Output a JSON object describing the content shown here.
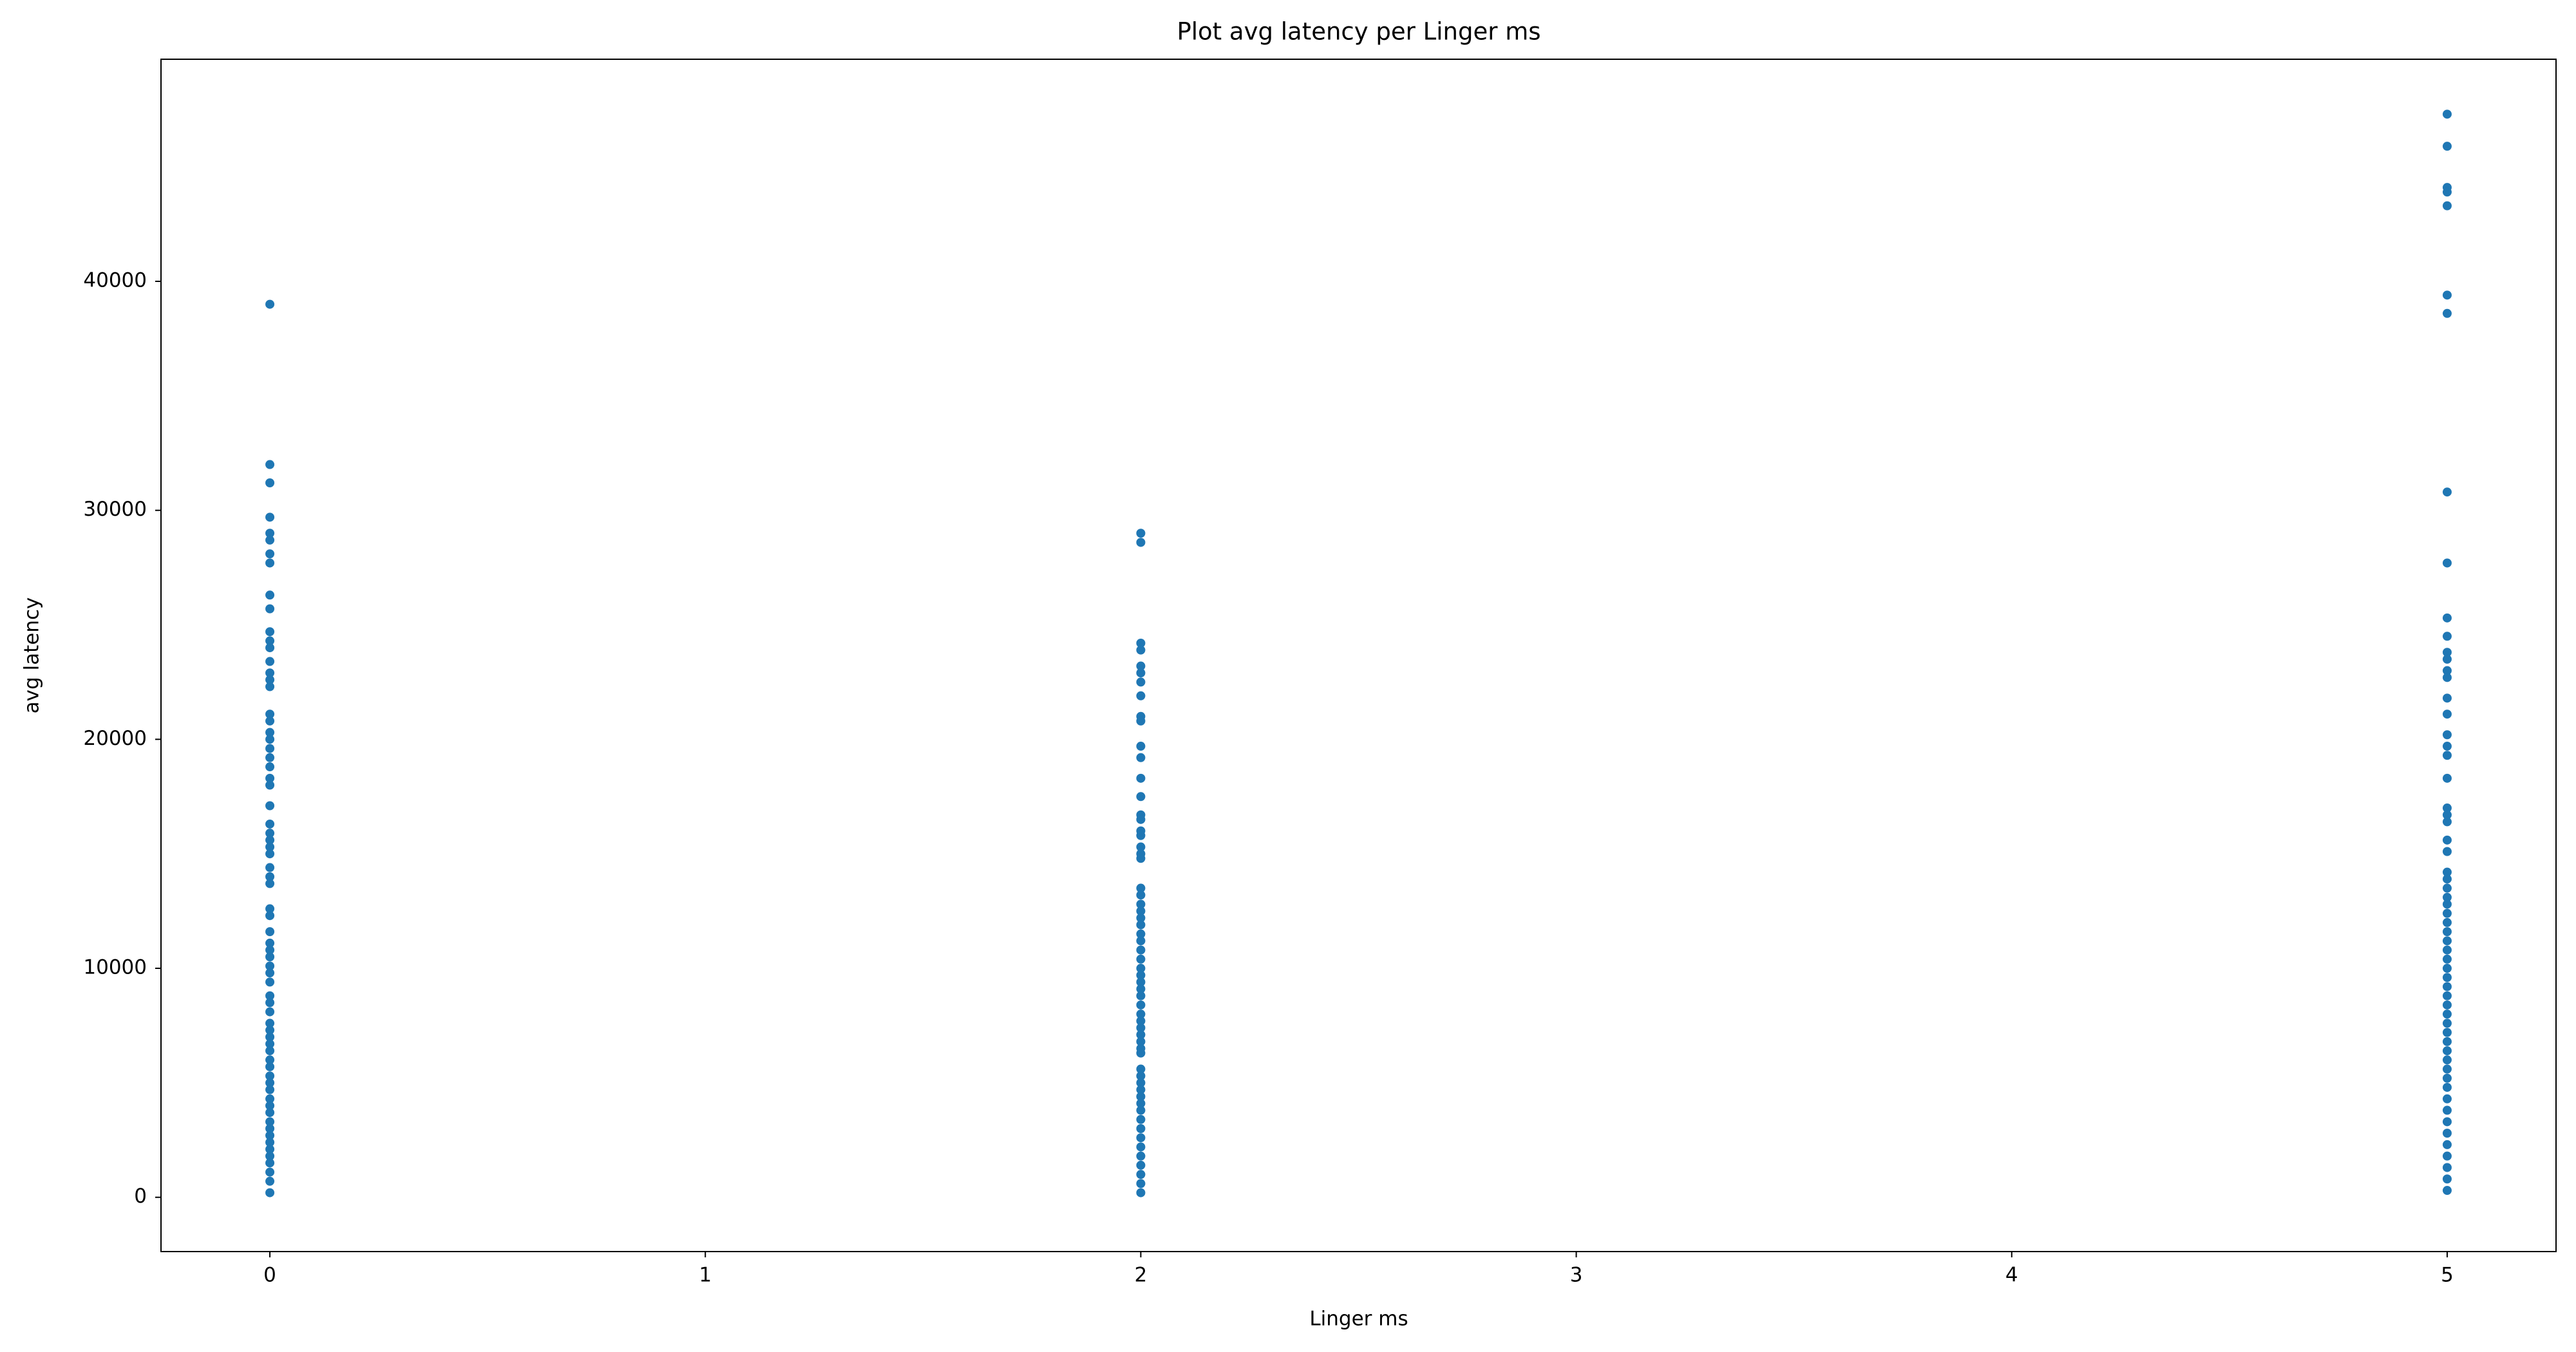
{
  "chart_data": {
    "type": "scatter",
    "title": "Plot avg latency per Linger ms",
    "x_label": "Linger ms",
    "y_label": "avg latency",
    "xlim": [
      -0.25,
      5.25
    ],
    "xticks": [
      0,
      1,
      2,
      3,
      4,
      5
    ],
    "ylim": [
      -2370,
      49700
    ],
    "yticks": [
      0,
      10000,
      20000,
      30000,
      40000
    ],
    "grid": false,
    "series": [
      {
        "color": "#1f77b4",
        "x": [
          0,
          0,
          0,
          0,
          0,
          0,
          0,
          0,
          0,
          0,
          0,
          0,
          0,
          0,
          0,
          0,
          0,
          0,
          0,
          0,
          0,
          0,
          0,
          0,
          0,
          0,
          0,
          0,
          0,
          0,
          0,
          0,
          0,
          0,
          0,
          0,
          0,
          0,
          0,
          0,
          0,
          0,
          0,
          0,
          0,
          0,
          0,
          0,
          0,
          0,
          0,
          0,
          0,
          0,
          0,
          0,
          0,
          0,
          0,
          0,
          0,
          0,
          0,
          0,
          0,
          0,
          0,
          0,
          0,
          0
        ],
        "values": [
          39000,
          32000,
          31200,
          29700,
          29000,
          28700,
          28100,
          27700,
          26300,
          25700,
          24700,
          24300,
          24000,
          23400,
          22900,
          22600,
          22300,
          21100,
          20800,
          20300,
          20000,
          19600,
          19200,
          18800,
          18300,
          18000,
          17100,
          16300,
          15900,
          15600,
          15300,
          15000,
          14400,
          14000,
          13700,
          12600,
          12300,
          11600,
          11100,
          10800,
          10500,
          10100,
          9800,
          9400,
          8800,
          8500,
          8100,
          7600,
          7300,
          7000,
          6700,
          6400,
          6000,
          5700,
          5300,
          5000,
          4700,
          4300,
          4000,
          3700,
          3300,
          3000,
          2700,
          2400,
          2100,
          1800,
          1500,
          1100,
          700,
          200
        ]
      },
      {
        "color": "#1f77b4",
        "x": [
          2,
          2,
          2,
          2,
          2,
          2,
          2,
          2,
          2,
          2,
          2,
          2,
          2,
          2,
          2,
          2,
          2,
          2,
          2,
          2,
          2,
          2,
          2,
          2,
          2,
          2,
          2,
          2,
          2,
          2,
          2,
          2,
          2,
          2,
          2,
          2,
          2,
          2,
          2,
          2,
          2,
          2,
          2,
          2,
          2,
          2,
          2,
          2,
          2,
          2,
          2,
          2,
          2,
          2,
          2,
          2,
          2,
          2,
          2,
          2
        ],
        "values": [
          29000,
          28600,
          24200,
          23900,
          23200,
          22900,
          22500,
          21900,
          21000,
          20800,
          19700,
          19200,
          18300,
          17500,
          16700,
          16500,
          16000,
          15800,
          15300,
          15000,
          14800,
          13500,
          13200,
          12800,
          12500,
          12200,
          11900,
          11500,
          11200,
          10800,
          10400,
          10000,
          9700,
          9400,
          9100,
          8800,
          8400,
          8000,
          7700,
          7400,
          7100,
          6800,
          6500,
          6300,
          5600,
          5300,
          5000,
          4700,
          4400,
          4100,
          3800,
          3400,
          3000,
          2600,
          2200,
          1800,
          1400,
          1000,
          600,
          200
        ]
      },
      {
        "color": "#1f77b4",
        "x": [
          5,
          5,
          5,
          5,
          5,
          5,
          5,
          5,
          5,
          5,
          5,
          5,
          5,
          5,
          5,
          5,
          5,
          5,
          5,
          5,
          5,
          5,
          5,
          5,
          5,
          5,
          5,
          5,
          5,
          5,
          5,
          5,
          5,
          5,
          5,
          5,
          5,
          5,
          5,
          5,
          5,
          5,
          5,
          5,
          5,
          5,
          5,
          5,
          5,
          5,
          5,
          5,
          5,
          5,
          5,
          5,
          5,
          5,
          5,
          5
        ],
        "values": [
          47300,
          45900,
          44100,
          43900,
          43300,
          39400,
          38600,
          30800,
          27700,
          25300,
          24500,
          23800,
          23500,
          23000,
          22700,
          21800,
          21100,
          20200,
          19700,
          19300,
          18300,
          17000,
          16700,
          16400,
          15600,
          15100,
          14200,
          13900,
          13500,
          13100,
          12800,
          12400,
          12000,
          11600,
          11200,
          10800,
          10400,
          10000,
          9600,
          9200,
          8800,
          8400,
          8000,
          7600,
          7200,
          6800,
          6400,
          6000,
          5600,
          5200,
          4800,
          4300,
          3800,
          3300,
          2800,
          2300,
          1800,
          1300,
          800,
          300
        ]
      }
    ]
  }
}
